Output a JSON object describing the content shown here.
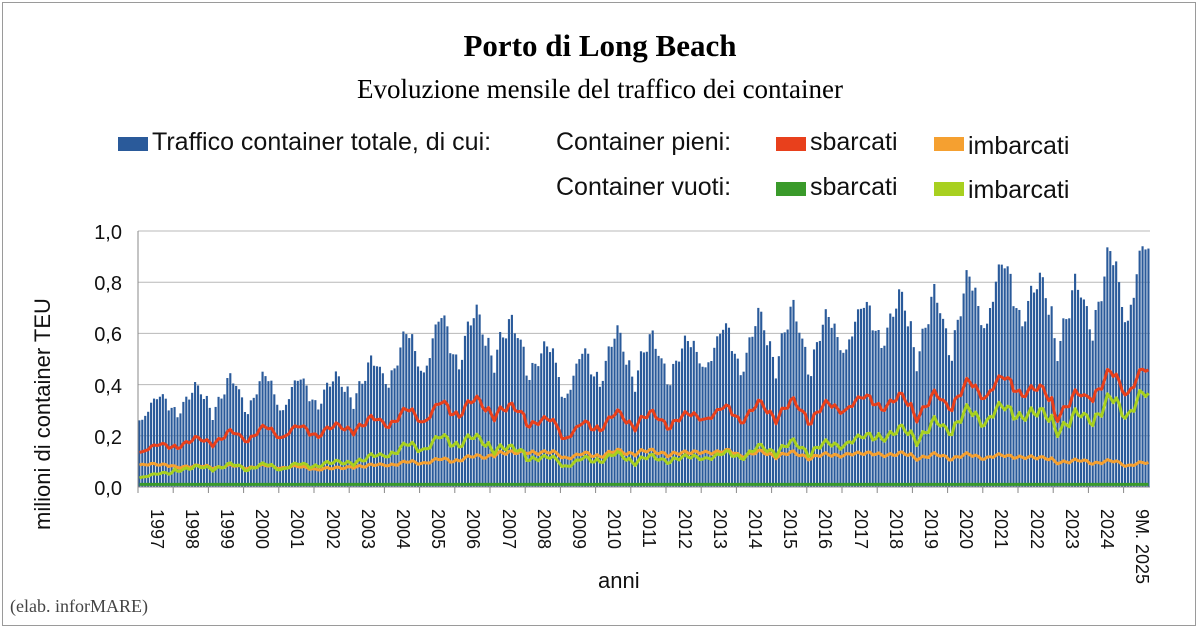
{
  "chart_data": {
    "type": "bar+line",
    "title": "Porto di Long Beach",
    "subtitle": "Evoluzione mensile del traffico dei container",
    "ylabel": "milioni di container TEU",
    "xlabel": "anni",
    "ylim": [
      0,
      1.0
    ],
    "yticks": [
      "1,0",
      "0,8",
      "0,6",
      "0,4",
      "0,2",
      "0,0"
    ],
    "ytick_values": [
      1.0,
      0.8,
      0.6,
      0.4,
      0.2,
      0.0
    ],
    "categories": [
      "1997",
      "1998",
      "1999",
      "2000",
      "2001",
      "2002",
      "2003",
      "2004",
      "2005",
      "2006",
      "2007",
      "2008",
      "2009",
      "2010",
      "2011",
      "2012",
      "2013",
      "2014",
      "2015",
      "2016",
      "2017",
      "2018",
      "2019",
      "2020",
      "2021",
      "2022",
      "2023",
      "2024",
      "9M. 2025"
    ],
    "legend": {
      "total": "Traffico container totale, di cui:",
      "full": "Container pieni:",
      "empty": "Container vuoti:",
      "unloaded": "sbarcati",
      "loaded": "imbarcati"
    },
    "series": [
      {
        "name": "Traffico container totale",
        "kind": "bar",
        "color": "#2a5a9a",
        "annual_avg": [
          0.31,
          0.34,
          0.36,
          0.38,
          0.37,
          0.38,
          0.4,
          0.5,
          0.56,
          0.6,
          0.6,
          0.53,
          0.42,
          0.52,
          0.52,
          0.5,
          0.55,
          0.56,
          0.61,
          0.57,
          0.63,
          0.67,
          0.63,
          0.67,
          0.78,
          0.77,
          0.65,
          0.77,
          0.82
        ]
      },
      {
        "name": "Container pieni sbarcati",
        "kind": "line",
        "color": "#e8401c",
        "annual_avg": [
          0.15,
          0.17,
          0.19,
          0.21,
          0.22,
          0.22,
          0.24,
          0.27,
          0.29,
          0.32,
          0.31,
          0.27,
          0.21,
          0.26,
          0.27,
          0.26,
          0.29,
          0.29,
          0.31,
          0.29,
          0.33,
          0.34,
          0.31,
          0.36,
          0.4,
          0.4,
          0.3,
          0.4,
          0.42
        ]
      },
      {
        "name": "Container pieni imbarcati",
        "kind": "line",
        "color": "#f5a030",
        "annual_avg": [
          0.09,
          0.08,
          0.08,
          0.08,
          0.08,
          0.07,
          0.08,
          0.09,
          0.1,
          0.11,
          0.13,
          0.14,
          0.12,
          0.13,
          0.14,
          0.13,
          0.14,
          0.13,
          0.13,
          0.12,
          0.13,
          0.13,
          0.12,
          0.12,
          0.12,
          0.12,
          0.1,
          0.1,
          0.09
        ]
      },
      {
        "name": "Container vuoti sbarcati",
        "kind": "line",
        "color": "#3a9a2a",
        "annual_avg": [
          0.01,
          0.01,
          0.01,
          0.01,
          0.01,
          0.01,
          0.01,
          0.01,
          0.01,
          0.01,
          0.01,
          0.01,
          0.01,
          0.01,
          0.01,
          0.01,
          0.01,
          0.01,
          0.01,
          0.01,
          0.01,
          0.01,
          0.01,
          0.01,
          0.01,
          0.01,
          0.01,
          0.01,
          0.01
        ]
      },
      {
        "name": "Container vuoti imbarcati",
        "kind": "line",
        "color": "#a8d020",
        "annual_avg": [
          0.04,
          0.07,
          0.08,
          0.08,
          0.08,
          0.09,
          0.1,
          0.14,
          0.17,
          0.19,
          0.16,
          0.12,
          0.09,
          0.12,
          0.11,
          0.11,
          0.12,
          0.13,
          0.16,
          0.15,
          0.18,
          0.21,
          0.21,
          0.26,
          0.29,
          0.3,
          0.24,
          0.3,
          0.33
        ]
      }
    ],
    "grid": true,
    "legend_position": "top"
  },
  "credit": "(elab. inforMARE)"
}
